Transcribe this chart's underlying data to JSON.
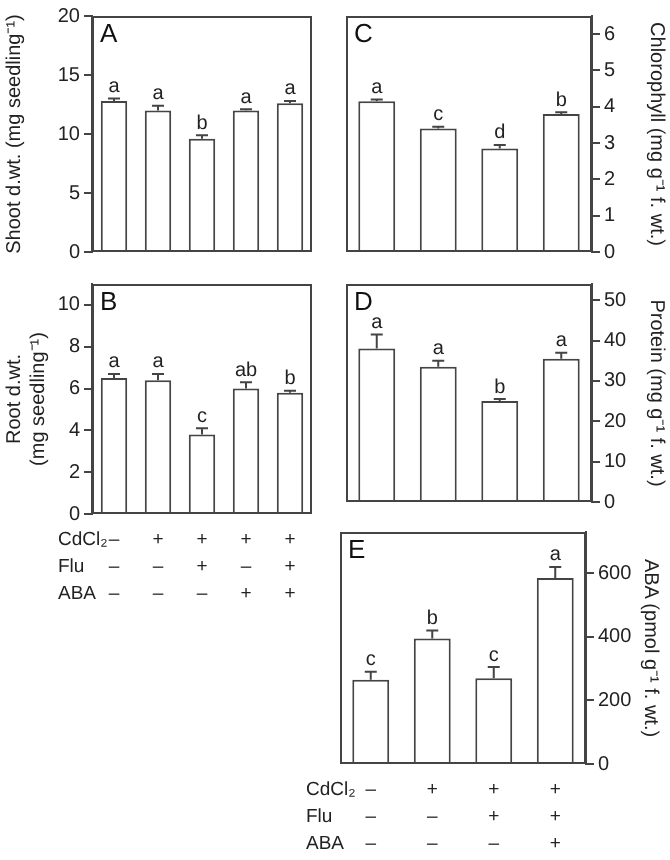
{
  "chart_data": [
    {
      "type": "bar",
      "title": "A",
      "ylabel": "Shoot d.wt. (mg seedling⁻¹)",
      "categories": [
        null,
        null,
        null,
        null,
        null
      ],
      "tick_labels": "y",
      "ylim": [
        0,
        20
      ],
      "yticks": [
        0,
        5,
        10,
        15,
        20
      ],
      "series": [
        {
          "color": "#ffffff",
          "values": [
            12.8,
            12.0,
            9.6,
            12.0,
            12.6
          ],
          "errors": [
            [
              12.8,
              13.0
            ],
            [
              12.0,
              12.4
            ],
            [
              9.6,
              9.9
            ],
            [
              12.0,
              12.1
            ],
            [
              12.6,
              12.8
            ]
          ],
          "value_labels": [
            "a",
            "a",
            "b",
            "a",
            "a"
          ]
        }
      ]
    },
    {
      "type": "bar",
      "title": "B",
      "ylabel": "Root d.wt.\n(mg seedling⁻¹)",
      "xlabel": "CdCl₂\nFlu\nABA",
      "categories": [
        "–\n–\n–",
        "+\n–\n–",
        "+\n+\n–",
        "+\n–\n+",
        "+\n+\n+"
      ],
      "ylim": [
        0,
        11
      ],
      "yticks": [
        0,
        2,
        4,
        6,
        8,
        10
      ],
      "series": [
        {
          "color": "#ffffff",
          "values": [
            6.5,
            6.4,
            3.8,
            6.0,
            5.8
          ],
          "errors": [
            [
              6.5,
              6.7
            ],
            [
              6.4,
              6.7
            ],
            [
              3.8,
              4.1
            ],
            [
              6.0,
              6.3
            ],
            [
              5.8,
              5.9
            ]
          ],
          "value_labels": [
            "a",
            "a",
            "c",
            "ab",
            "b"
          ]
        }
      ]
    },
    {
      "type": "bar",
      "title": "C",
      "ylabel": "Chlorophyll (mg g⁻¹ f. wt.)",
      "categories": [
        null,
        null,
        null,
        null
      ],
      "tick_labels": "y",
      "ylim": [
        0,
        6.5
      ],
      "yticks": [
        0,
        1,
        2,
        3,
        4,
        5,
        6
      ],
      "series": [
        {
          "color": "#ffffff",
          "values": [
            4.15,
            3.4,
            2.85,
            3.8
          ],
          "errors": [
            [
              4.15,
              4.2
            ],
            [
              3.4,
              3.45
            ],
            [
              2.85,
              2.95
            ],
            [
              3.8,
              3.85
            ]
          ],
          "value_labels": [
            "a",
            "c",
            "d",
            "b"
          ]
        }
      ]
    },
    {
      "type": "bar",
      "title": "D",
      "ylabel": "Protein (mg g⁻¹ f. wt.)",
      "categories": [
        null,
        null,
        null,
        null
      ],
      "tick_labels": "y",
      "ylim": [
        0,
        54
      ],
      "yticks": [
        0,
        10,
        20,
        30,
        40,
        50
      ],
      "series": [
        {
          "color": "#ffffff",
          "values": [
            38,
            33.5,
            25,
            35.5
          ],
          "errors": [
            [
              38,
              41.5
            ],
            [
              33.5,
              35
            ],
            [
              25,
              25.5
            ],
            [
              35.5,
              37
            ]
          ],
          "value_labels": [
            "a",
            "a",
            "b",
            "a"
          ]
        }
      ]
    },
    {
      "type": "bar",
      "title": "E",
      "ylabel": "ABA (pmol g⁻¹ f. wt.)",
      "xlabel": "CdCl₂\nFlu\nABA",
      "categories": [
        "–\n–\n–",
        "+\n–\n–",
        "+\n+\n–",
        "+\n+\n+"
      ],
      "ylim": [
        0,
        730
      ],
      "yticks": [
        0,
        200,
        400,
        600
      ],
      "series": [
        {
          "color": "#ffffff",
          "values": [
            265,
            395,
            270,
            585
          ],
          "errors": [
            [
              265,
              290
            ],
            [
              395,
              420
            ],
            [
              270,
              305
            ],
            [
              585,
              620
            ]
          ],
          "value_labels": [
            "c",
            "b",
            "c",
            "a"
          ]
        }
      ]
    }
  ]
}
